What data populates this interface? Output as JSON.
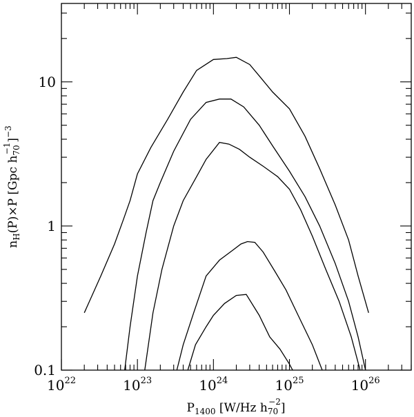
{
  "chart_data": {
    "type": "line",
    "xscale": "log",
    "yscale": "log",
    "xlim": [
      1e+22,
      4e+26
    ],
    "ylim": [
      0.1,
      35
    ],
    "x_ticks": [
      {
        "value": 1e+22,
        "base": "10",
        "exp": "22"
      },
      {
        "value": 1e+23,
        "base": "10",
        "exp": "23"
      },
      {
        "value": 1e+24,
        "base": "10",
        "exp": "24"
      },
      {
        "value": 1e+25,
        "base": "10",
        "exp": "25"
      },
      {
        "value": 1e+26,
        "base": "10",
        "exp": "26"
      }
    ],
    "y_ticks": [
      {
        "value": 0.1,
        "label": "0.1"
      },
      {
        "value": 1,
        "label": "1"
      },
      {
        "value": 10,
        "label": "10"
      }
    ],
    "xlabel": {
      "main": "P",
      "sub": "1400",
      "rest": " [W/Hz h",
      "sub2": "70",
      "sup2": "−2",
      "close": "]"
    },
    "ylabel": {
      "pre": "n",
      "sub": "H",
      "mid": "(P)×P [Gpc h",
      "sub2": "70",
      "sup2": "−1",
      "close": "]",
      "sup3": "−3"
    },
    "grid": false,
    "series": [
      {
        "values": [
          [
            2e+22,
            0.25
          ],
          [
            3.3e+22,
            0.45
          ],
          [
            5e+22,
            0.75
          ],
          [
            6.5e+22,
            1.1
          ],
          [
            8e+22,
            1.5
          ],
          [
            1e+23,
            2.3
          ],
          [
            1.5e+23,
            3.5
          ],
          [
            2.5e+23,
            5.5
          ],
          [
            4e+23,
            8.5
          ],
          [
            6e+23,
            12.0
          ],
          [
            1e+24,
            14.3
          ],
          [
            1.5e+24,
            14.5
          ],
          [
            2e+24,
            14.8
          ],
          [
            3e+24,
            13.2
          ],
          [
            4e+24,
            11.0
          ],
          [
            6e+24,
            8.5
          ],
          [
            1e+25,
            6.5
          ],
          [
            1.6e+25,
            4.2
          ],
          [
            2.5e+25,
            2.5
          ],
          [
            4e+25,
            1.4
          ],
          [
            6e+25,
            0.8
          ],
          [
            8e+25,
            0.45
          ],
          [
            1.1e+26,
            0.25
          ]
        ]
      },
      {
        "values": [
          [
            6.8e+22,
            0.1
          ],
          [
            8e+22,
            0.2
          ],
          [
            1e+23,
            0.45
          ],
          [
            1.3e+23,
            0.9
          ],
          [
            1.6e+23,
            1.5
          ],
          [
            2e+23,
            2.0
          ],
          [
            3e+23,
            3.3
          ],
          [
            5e+23,
            5.5
          ],
          [
            8e+23,
            7.2
          ],
          [
            1.2e+24,
            7.6
          ],
          [
            1.7e+24,
            7.6
          ],
          [
            2.5e+24,
            6.7
          ],
          [
            4e+24,
            5.0
          ],
          [
            6e+24,
            3.6
          ],
          [
            1e+25,
            2.4
          ],
          [
            1.6e+25,
            1.6
          ],
          [
            2.5e+25,
            1.0
          ],
          [
            4e+25,
            0.55
          ],
          [
            6e+25,
            0.3
          ],
          [
            8e+25,
            0.17
          ],
          [
            1e+26,
            0.1
          ]
        ]
      },
      {
        "values": [
          [
            1.25e+23,
            0.1
          ],
          [
            1.6e+23,
            0.25
          ],
          [
            2.1e+23,
            0.5
          ],
          [
            3e+23,
            1.0
          ],
          [
            4e+23,
            1.5
          ],
          [
            6e+23,
            2.2
          ],
          [
            8e+23,
            2.9
          ],
          [
            1.2e+24,
            3.8
          ],
          [
            1.6e+24,
            3.7
          ],
          [
            2.2e+24,
            3.4
          ],
          [
            3e+24,
            3.0
          ],
          [
            4.5e+24,
            2.6
          ],
          [
            7e+24,
            2.2
          ],
          [
            1e+25,
            1.8
          ],
          [
            1.4e+25,
            1.3
          ],
          [
            2e+25,
            0.85
          ],
          [
            3e+25,
            0.5
          ],
          [
            4.5e+25,
            0.3
          ],
          [
            6.5e+25,
            0.17
          ],
          [
            8.5e+25,
            0.1
          ]
        ]
      },
      {
        "values": [
          [
            3.3e+23,
            0.1
          ],
          [
            4e+23,
            0.15
          ],
          [
            5.5e+23,
            0.25
          ],
          [
            8e+23,
            0.45
          ],
          [
            1.2e+24,
            0.58
          ],
          [
            1.8e+24,
            0.68
          ],
          [
            2.3e+24,
            0.75
          ],
          [
            2.8e+24,
            0.78
          ],
          [
            3.5e+24,
            0.77
          ],
          [
            4.5e+24,
            0.66
          ],
          [
            6.5e+24,
            0.48
          ],
          [
            9e+24,
            0.36
          ],
          [
            1.3e+25,
            0.24
          ],
          [
            2e+25,
            0.15
          ],
          [
            2.7e+25,
            0.1
          ]
        ]
      },
      {
        "values": [
          [
            4.6e+23,
            0.1
          ],
          [
            5.8e+23,
            0.15
          ],
          [
            8e+23,
            0.2
          ],
          [
            1e+24,
            0.24
          ],
          [
            1.4e+24,
            0.29
          ],
          [
            2e+24,
            0.33
          ],
          [
            2.7e+24,
            0.335
          ],
          [
            4e+24,
            0.24
          ],
          [
            5.5e+24,
            0.17
          ],
          [
            7.5e+24,
            0.14
          ],
          [
            1e+25,
            0.11
          ],
          [
            1.1e+25,
            0.1
          ]
        ]
      }
    ]
  }
}
